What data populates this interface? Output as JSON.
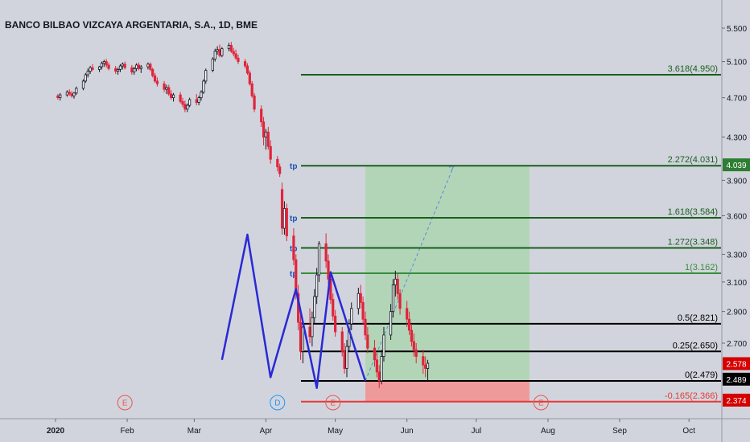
{
  "chart_data": {
    "type": "candlestick",
    "title": "BANCO BILBAO VIZCAYA ARGENTARIA, S.A., 1D, BME",
    "y_axis": {
      "ticks": [
        5.5,
        5.1,
        4.7,
        4.3,
        3.9,
        3.6,
        3.3,
        3.1,
        2.9,
        2.7
      ],
      "tick_labels": [
        "5.500",
        "5.100",
        "4.700",
        "4.300",
        "3.900",
        "3.600",
        "3.300",
        "3.100",
        "2.900",
        "2.700"
      ],
      "scale": "log"
    },
    "x_axis": {
      "tick_labels": [
        "2020",
        "Feb",
        "Mar",
        "Apr",
        "May",
        "Jun",
        "Jul",
        "Aug",
        "Sep",
        "Oct"
      ]
    },
    "fib_levels": [
      {
        "label": "3.618(4.950)",
        "price": 4.95,
        "color": "#1b5e20"
      },
      {
        "label": "2.272(4.031)",
        "price": 4.031,
        "color": "#1b5e20",
        "tp": "tp"
      },
      {
        "label": "1.618(3.584)",
        "price": 3.584,
        "color": "#1b5e20",
        "tp": "tp"
      },
      {
        "label": "1.272(3.348)",
        "price": 3.348,
        "color": "#1b5e20",
        "tp": "tp"
      },
      {
        "label": "1(3.162)",
        "price": 3.162,
        "color": "#388e3c",
        "tp": "tp"
      },
      {
        "label": "0.5(2.821)",
        "price": 2.821,
        "color": "#000000"
      },
      {
        "label": "0.25(2.650)",
        "price": 2.65,
        "color": "#000000"
      },
      {
        "label": "0(2.479)",
        "price": 2.479,
        "color": "#000000"
      },
      {
        "label": "-0.165(2.366)",
        "price": 2.366,
        "color": "#e53935"
      }
    ],
    "price_badges": [
      {
        "label": "4.039",
        "price": 4.039,
        "color": "#2e7d32"
      },
      {
        "label": "2.578",
        "price": 2.578,
        "color": "#d50000"
      },
      {
        "label": "2.489",
        "price": 2.489,
        "color": "#000000"
      },
      {
        "label": "2.374",
        "price": 2.374,
        "color": "#d50000"
      }
    ],
    "pattern_points": [
      {
        "date": "2020-03-13",
        "price": 2.6
      },
      {
        "date": "2020-03-24",
        "price": 3.45
      },
      {
        "date": "2020-04-03",
        "price": 2.5
      },
      {
        "date": "2020-04-14",
        "price": 3.05
      },
      {
        "date": "2020-04-23",
        "price": 2.44
      },
      {
        "date": "2020-04-29",
        "price": 3.17
      },
      {
        "date": "2020-05-14",
        "price": 2.479
      }
    ],
    "position": {
      "type": "long",
      "entry": 2.479,
      "target": 4.031,
      "stop": 2.366,
      "start_date": "2020-05-14",
      "end_date": "2020-07-24"
    },
    "event_markers": [
      {
        "label": "E",
        "date": "2020-01-31",
        "color": "#ef5350"
      },
      {
        "label": "D",
        "date": "2020-04-06",
        "color": "#2196f3"
      },
      {
        "label": "E",
        "date": "2020-04-30",
        "color": "#ef5350"
      },
      {
        "label": "E",
        "date": "2020-07-29",
        "color": "#ef5350"
      }
    ],
    "candles": [
      [
        4.72,
        4.74,
        4.68,
        4.7
      ],
      [
        4.7,
        4.75,
        4.67,
        4.73
      ],
      [
        4.73,
        4.78,
        4.71,
        4.76
      ],
      [
        4.76,
        4.79,
        4.72,
        4.74
      ],
      [
        4.74,
        4.77,
        4.7,
        4.72
      ],
      [
        4.72,
        4.76,
        4.69,
        4.75
      ],
      [
        4.75,
        4.82,
        4.73,
        4.8
      ],
      [
        4.8,
        4.9,
        4.78,
        4.88
      ],
      [
        4.88,
        4.97,
        4.86,
        4.95
      ],
      [
        4.95,
        5.02,
        4.92,
        4.99
      ],
      [
        4.99,
        5.05,
        4.96,
        5.03
      ],
      [
        5.03,
        5.07,
        4.99,
        5.01
      ],
      [
        5.01,
        5.05,
        4.98,
        5.04
      ],
      [
        5.04,
        5.1,
        5.01,
        5.08
      ],
      [
        5.08,
        5.12,
        5.04,
        5.1
      ],
      [
        5.1,
        5.13,
        5.03,
        5.06
      ],
      [
        5.06,
        5.09,
        5.0,
        5.02
      ],
      [
        5.02,
        5.05,
        4.96,
        4.99
      ],
      [
        4.99,
        5.03,
        4.95,
        5.01
      ],
      [
        5.01,
        5.07,
        4.98,
        5.05
      ],
      [
        5.05,
        5.09,
        5.01,
        5.07
      ],
      [
        5.07,
        5.1,
        5.01,
        5.03
      ],
      [
        5.03,
        5.06,
        4.95,
        4.98
      ],
      [
        4.98,
        5.04,
        4.95,
        5.02
      ],
      [
        5.02,
        5.08,
        4.99,
        5.06
      ],
      [
        5.06,
        5.09,
        5.0,
        5.02
      ],
      [
        5.02,
        5.06,
        4.97,
        5.04
      ],
      [
        5.04,
        5.09,
        5.01,
        5.07
      ],
      [
        5.07,
        5.09,
        4.99,
        5.01
      ],
      [
        5.01,
        5.03,
        4.92,
        4.94
      ],
      [
        4.94,
        4.97,
        4.86,
        4.88
      ],
      [
        4.88,
        4.92,
        4.82,
        4.85
      ],
      [
        4.85,
        4.88,
        4.76,
        4.79
      ],
      [
        4.79,
        4.84,
        4.74,
        4.81
      ],
      [
        4.81,
        4.84,
        4.72,
        4.74
      ],
      [
        4.74,
        4.78,
        4.68,
        4.7
      ],
      [
        4.7,
        4.75,
        4.66,
        4.73
      ],
      [
        4.73,
        4.76,
        4.64,
        4.66
      ],
      [
        4.66,
        4.7,
        4.6,
        4.63
      ],
      [
        4.63,
        4.67,
        4.55,
        4.58
      ],
      [
        4.58,
        4.64,
        4.55,
        4.62
      ],
      [
        4.62,
        4.7,
        4.6,
        4.68
      ],
      [
        4.68,
        4.74,
        4.62,
        4.65
      ],
      [
        4.65,
        4.72,
        4.62,
        4.7
      ],
      [
        4.7,
        4.78,
        4.67,
        4.76
      ],
      [
        4.76,
        4.9,
        4.74,
        4.88
      ],
      [
        4.88,
        5.02,
        4.85,
        5.0
      ],
      [
        5.0,
        5.15,
        4.98,
        5.13
      ],
      [
        5.13,
        5.25,
        5.1,
        5.22
      ],
      [
        5.22,
        5.28,
        5.18,
        5.24
      ],
      [
        5.24,
        5.3,
        5.15,
        5.17
      ],
      [
        5.17,
        5.27,
        5.15,
        5.25
      ],
      [
        5.25,
        5.32,
        5.22,
        5.29
      ],
      [
        5.29,
        5.33,
        5.2,
        5.22
      ],
      [
        5.22,
        5.26,
        5.16,
        5.19
      ],
      [
        5.19,
        5.24,
        5.12,
        5.14
      ],
      [
        5.14,
        5.18,
        5.07,
        5.1
      ],
      [
        5.1,
        5.13,
        5.02,
        5.05
      ],
      [
        5.05,
        5.08,
        4.95,
        4.97
      ],
      [
        4.97,
        5.0,
        4.83,
        4.85
      ],
      [
        4.85,
        4.88,
        4.7,
        4.72
      ],
      [
        4.72,
        4.75,
        4.55,
        4.58
      ],
      [
        4.58,
        4.62,
        4.4,
        4.45
      ],
      [
        4.45,
        4.5,
        4.22,
        4.3
      ],
      [
        4.3,
        4.38,
        4.18,
        4.35
      ],
      [
        4.35,
        4.4,
        4.18,
        4.21
      ],
      [
        4.21,
        4.27,
        4.05,
        4.09
      ],
      [
        4.09,
        4.12,
        3.98,
        4.02
      ],
      [
        4.02,
        4.05,
        3.93,
        3.96
      ],
      [
        3.82,
        3.88,
        3.45,
        3.5
      ],
      [
        3.5,
        3.72,
        3.45,
        3.66
      ],
      [
        3.66,
        3.7,
        3.4,
        3.44
      ],
      [
        3.44,
        3.5,
        3.22,
        3.26
      ],
      [
        3.26,
        3.3,
        2.98,
        3.02
      ],
      [
        3.02,
        3.08,
        2.78,
        2.83
      ],
      [
        2.83,
        2.9,
        2.6,
        2.65
      ],
      [
        2.65,
        2.85,
        2.58,
        2.8
      ],
      [
        2.8,
        2.92,
        2.7,
        2.74
      ],
      [
        2.74,
        2.9,
        2.68,
        2.86
      ],
      [
        2.86,
        3.05,
        2.82,
        3.0
      ],
      [
        3.0,
        3.2,
        2.95,
        3.15
      ],
      [
        3.15,
        3.4,
        3.1,
        3.38
      ],
      [
        3.38,
        3.46,
        3.2,
        3.25
      ],
      [
        3.25,
        3.3,
        3.08,
        3.12
      ],
      [
        3.12,
        3.15,
        2.95,
        2.98
      ],
      [
        2.98,
        3.02,
        2.84,
        2.87
      ],
      [
        2.87,
        2.91,
        2.74,
        2.77
      ],
      [
        2.77,
        2.8,
        2.62,
        2.65
      ],
      [
        2.65,
        2.7,
        2.52,
        2.55
      ],
      [
        2.55,
        2.72,
        2.5,
        2.68
      ],
      [
        2.68,
        2.85,
        2.65,
        2.82
      ],
      [
        2.82,
        2.96,
        2.78,
        2.92
      ],
      [
        2.92,
        3.06,
        2.88,
        3.02
      ],
      [
        3.02,
        3.08,
        2.92,
        2.96
      ],
      [
        2.96,
        3.0,
        2.82,
        2.85
      ],
      [
        2.85,
        2.9,
        2.72,
        2.75
      ],
      [
        2.75,
        2.8,
        2.64,
        2.67
      ],
      [
        2.67,
        2.72,
        2.56,
        2.6
      ],
      [
        2.6,
        2.64,
        2.5,
        2.53
      ],
      [
        2.53,
        2.57,
        2.44,
        2.48
      ],
      [
        2.48,
        2.66,
        2.46,
        2.62
      ],
      [
        2.62,
        2.8,
        2.59,
        2.75
      ],
      [
        2.75,
        2.95,
        2.72,
        2.9
      ],
      [
        2.9,
        3.12,
        2.86,
        3.08
      ],
      [
        3.08,
        3.18,
        3.0,
        3.12
      ],
      [
        3.12,
        3.16,
        2.98,
        3.02
      ],
      [
        3.02,
        3.05,
        2.88,
        2.92
      ],
      [
        2.92,
        2.97,
        2.8,
        2.85
      ],
      [
        2.85,
        2.9,
        2.75,
        2.78
      ],
      [
        2.78,
        2.82,
        2.68,
        2.71
      ],
      [
        2.71,
        2.76,
        2.62,
        2.66
      ],
      [
        2.66,
        2.7,
        2.58,
        2.62
      ],
      [
        2.62,
        2.66,
        2.52,
        2.57
      ],
      [
        2.57,
        2.62,
        2.5,
        2.55
      ],
      [
        2.55,
        2.6,
        2.48,
        2.58
      ]
    ]
  }
}
